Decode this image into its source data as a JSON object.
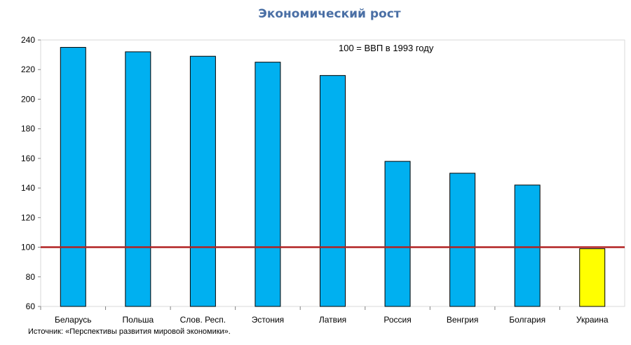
{
  "chart_data": {
    "type": "bar",
    "title": "Экономический рост",
    "annotation": "100 = ВВП в 1993 году",
    "categories": [
      "Беларусь",
      "Польша",
      "Слов. Респ.",
      "Эстония",
      "Латвия",
      "Россия",
      "Венгрия",
      "Болгария",
      "Украина"
    ],
    "values": [
      235,
      232,
      229,
      225,
      216,
      158,
      150,
      142,
      99
    ],
    "bar_colors": [
      "#00b0f0",
      "#00b0f0",
      "#00b0f0",
      "#00b0f0",
      "#00b0f0",
      "#00b0f0",
      "#00b0f0",
      "#00b0f0",
      "#ffff00"
    ],
    "ylim": [
      60,
      240
    ],
    "yticks": [
      60,
      80,
      100,
      120,
      140,
      160,
      180,
      200,
      220,
      240
    ],
    "reference_line": {
      "value": 100,
      "color": "#b22222"
    },
    "grid": false,
    "legend": "none",
    "source": "Источник: «Перспективы развития мировой экономики»."
  }
}
